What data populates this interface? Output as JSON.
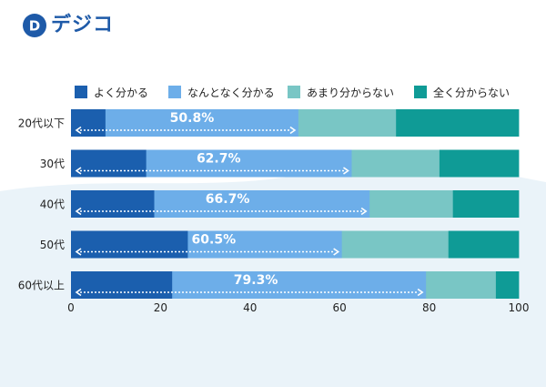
{
  "brand": {
    "name": "デジコ",
    "mark": "D",
    "color": "#1e5aa8"
  },
  "chart_data": {
    "type": "bar",
    "orientation": "horizontal",
    "stacked": true,
    "categories": [
      "20代以下",
      "30代",
      "40代",
      "50代",
      "60代以上"
    ],
    "series": [
      {
        "name": "よく分かる",
        "color": "#1b5fae",
        "values": [
          7.7,
          16.8,
          18.6,
          26.1,
          22.6
        ]
      },
      {
        "name": "なんとなく分かる",
        "color": "#6daee9",
        "values": [
          43.1,
          45.9,
          48.1,
          34.4,
          56.7
        ]
      },
      {
        "name": "あまり分からない",
        "color": "#79c6c5",
        "values": [
          21.8,
          19.6,
          18.6,
          23.8,
          15.6
        ]
      },
      {
        "name": "全く分からない",
        "color": "#0f9b96",
        "values": [
          27.4,
          17.7,
          14.7,
          15.7,
          5.1
        ]
      }
    ],
    "annotations": [
      "50.8%",
      "62.7%",
      "66.7%",
      "60.5%",
      "79.3%"
    ],
    "annotation_values": [
      50.8,
      62.7,
      66.7,
      60.5,
      79.3
    ],
    "x_ticks": [
      "0",
      "20",
      "40",
      "60",
      "80",
      "100"
    ],
    "xlim": [
      0,
      100
    ],
    "legend_position": "top",
    "grid": false
  }
}
